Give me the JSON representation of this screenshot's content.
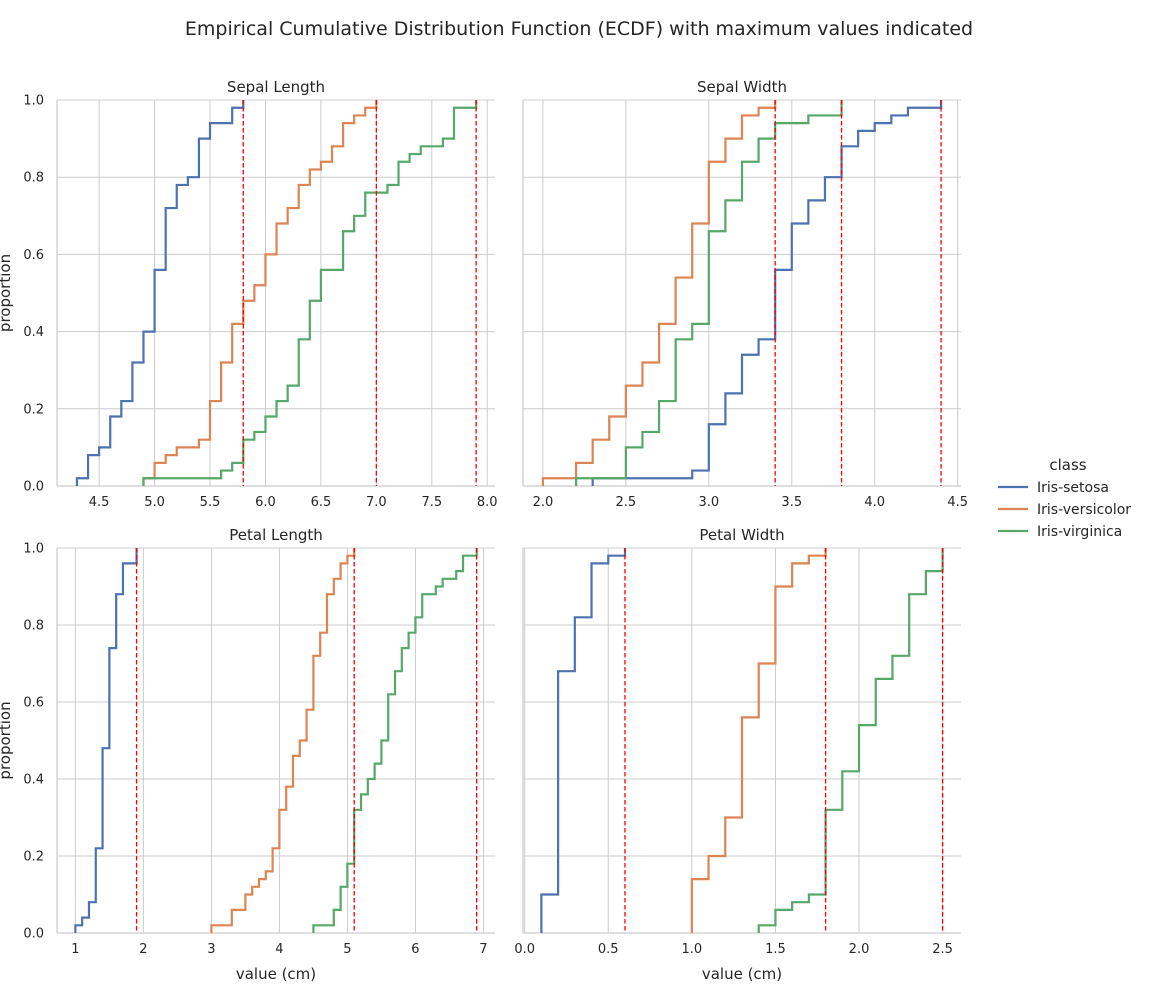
{
  "chart_data": {
    "type": "line",
    "title": "Empirical Cumulative Distribution Function (ECDF) with maximum values indicated",
    "legend": {
      "title": "class",
      "placement": "right",
      "entries": [
        {
          "name": "Iris-setosa",
          "color": "#4c72b0"
        },
        {
          "name": "Iris-versicolor",
          "color": "#dd8452"
        },
        {
          "name": "Iris-virginica",
          "color": "#55a868"
        }
      ]
    },
    "ylabel": "proportion",
    "xlabel": "value (cm)",
    "panels": [
      {
        "title": "Sepal Length",
        "xlim": [
          4.12,
          8.07
        ],
        "xticks": [
          4.5,
          5.0,
          5.5,
          6.0,
          6.5,
          7.0,
          7.5,
          8.0
        ],
        "xticklabels": [
          "4.5",
          "5.0",
          "5.5",
          "6.0",
          "6.5",
          "7.0",
          "7.5",
          "8.0"
        ],
        "ylim": [
          0,
          1
        ],
        "yticks": [
          0.0,
          0.2,
          0.4,
          0.6,
          0.8,
          1.0
        ],
        "yticklabels": [
          "0.0",
          "0.2",
          "0.4",
          "0.6",
          "0.8",
          "1.0"
        ],
        "xlabel": "",
        "ylabel": "proportion",
        "series": [
          {
            "name": "Iris-setosa",
            "x": [
              4.3,
              4.4,
              4.5,
              4.6,
              4.7,
              4.8,
              4.9,
              5.0,
              5.1,
              5.2,
              5.3,
              5.4,
              5.5,
              5.7,
              5.8
            ],
            "y": [
              0.02,
              0.08,
              0.1,
              0.18,
              0.22,
              0.32,
              0.4,
              0.56,
              0.72,
              0.78,
              0.8,
              0.9,
              0.94,
              0.98,
              1.0
            ]
          },
          {
            "name": "Iris-versicolor",
            "x": [
              4.9,
              5.0,
              5.1,
              5.2,
              5.4,
              5.5,
              5.6,
              5.7,
              5.8,
              5.9,
              6.0,
              6.1,
              6.2,
              6.3,
              6.4,
              6.5,
              6.6,
              6.7,
              6.8,
              6.9,
              7.0
            ],
            "y": [
              0.02,
              0.06,
              0.08,
              0.1,
              0.12,
              0.22,
              0.32,
              0.42,
              0.48,
              0.52,
              0.6,
              0.68,
              0.72,
              0.78,
              0.82,
              0.84,
              0.88,
              0.94,
              0.96,
              0.98,
              1.0
            ]
          },
          {
            "name": "Iris-virginica",
            "x": [
              4.9,
              5.6,
              5.7,
              5.8,
              5.9,
              6.0,
              6.1,
              6.2,
              6.3,
              6.4,
              6.5,
              6.7,
              6.8,
              6.9,
              7.1,
              7.2,
              7.3,
              7.4,
              7.6,
              7.7,
              7.9
            ],
            "y": [
              0.02,
              0.04,
              0.06,
              0.12,
              0.14,
              0.18,
              0.22,
              0.26,
              0.38,
              0.48,
              0.56,
              0.66,
              0.7,
              0.76,
              0.78,
              0.84,
              0.86,
              0.88,
              0.9,
              0.98,
              1.0
            ]
          }
        ],
        "max_lines": [
          5.8,
          7.0,
          7.9
        ]
      },
      {
        "title": "Sepal Width",
        "xlim": [
          1.88,
          4.52
        ],
        "xticks": [
          2.0,
          2.5,
          3.0,
          3.5,
          4.0,
          4.5
        ],
        "xticklabels": [
          "2.0",
          "2.5",
          "3.0",
          "3.5",
          "4.0",
          "4.5"
        ],
        "ylim": [
          0,
          1
        ],
        "yticks": [],
        "yticklabels": [],
        "xlabel": "",
        "ylabel": "",
        "series": [
          {
            "name": "Iris-setosa",
            "x": [
              2.3,
              2.9,
              3.0,
              3.1,
              3.2,
              3.3,
              3.4,
              3.5,
              3.6,
              3.7,
              3.8,
              3.9,
              4.0,
              4.1,
              4.2,
              4.4
            ],
            "y": [
              0.02,
              0.04,
              0.16,
              0.24,
              0.34,
              0.38,
              0.56,
              0.68,
              0.74,
              0.8,
              0.88,
              0.92,
              0.94,
              0.96,
              0.98,
              1.0
            ]
          },
          {
            "name": "Iris-versicolor",
            "x": [
              2.0,
              2.2,
              2.3,
              2.4,
              2.5,
              2.6,
              2.7,
              2.8,
              2.9,
              3.0,
              3.1,
              3.2,
              3.3,
              3.4
            ],
            "y": [
              0.02,
              0.06,
              0.12,
              0.18,
              0.26,
              0.32,
              0.42,
              0.54,
              0.68,
              0.84,
              0.9,
              0.96,
              0.98,
              1.0
            ]
          },
          {
            "name": "Iris-virginica",
            "x": [
              2.2,
              2.5,
              2.6,
              2.7,
              2.8,
              2.9,
              3.0,
              3.1,
              3.2,
              3.3,
              3.4,
              3.6,
              3.8
            ],
            "y": [
              0.02,
              0.1,
              0.14,
              0.22,
              0.38,
              0.42,
              0.66,
              0.74,
              0.84,
              0.9,
              0.94,
              0.96,
              1.0
            ]
          }
        ],
        "max_lines": [
          3.4,
          3.8,
          4.4
        ]
      },
      {
        "title": "Petal Length",
        "xlim": [
          0.73,
          7.17
        ],
        "xticks": [
          1,
          2,
          3,
          4,
          5,
          6,
          7
        ],
        "xticklabels": [
          "1",
          "2",
          "3",
          "4",
          "5",
          "6",
          "7"
        ],
        "ylim": [
          0,
          1
        ],
        "yticks": [
          0.0,
          0.2,
          0.4,
          0.6,
          0.8,
          1.0
        ],
        "yticklabels": [
          "0.0",
          "0.2",
          "0.4",
          "0.6",
          "0.8",
          "1.0"
        ],
        "xlabel": "value (cm)",
        "ylabel": "proportion",
        "series": [
          {
            "name": "Iris-setosa",
            "x": [
              1.0,
              1.1,
              1.2,
              1.3,
              1.4,
              1.5,
              1.6,
              1.7,
              1.9
            ],
            "y": [
              0.02,
              0.04,
              0.08,
              0.22,
              0.48,
              0.74,
              0.88,
              0.96,
              1.0
            ]
          },
          {
            "name": "Iris-versicolor",
            "x": [
              3.0,
              3.3,
              3.5,
              3.6,
              3.7,
              3.8,
              3.9,
              4.0,
              4.1,
              4.2,
              4.3,
              4.4,
              4.5,
              4.6,
              4.7,
              4.8,
              4.9,
              5.0,
              5.1
            ],
            "y": [
              0.02,
              0.06,
              0.1,
              0.12,
              0.14,
              0.16,
              0.22,
              0.32,
              0.38,
              0.46,
              0.5,
              0.58,
              0.72,
              0.78,
              0.88,
              0.92,
              0.96,
              0.98,
              1.0
            ]
          },
          {
            "name": "Iris-virginica",
            "x": [
              4.5,
              4.8,
              4.9,
              5.0,
              5.1,
              5.2,
              5.3,
              5.4,
              5.5,
              5.6,
              5.7,
              5.8,
              5.9,
              6.0,
              6.1,
              6.3,
              6.4,
              6.6,
              6.7,
              6.9
            ],
            "y": [
              0.02,
              0.06,
              0.12,
              0.18,
              0.32,
              0.36,
              0.4,
              0.44,
              0.5,
              0.62,
              0.68,
              0.74,
              0.78,
              0.82,
              0.88,
              0.9,
              0.92,
              0.94,
              0.98,
              1.0
            ]
          }
        ],
        "max_lines": [
          1.9,
          5.1,
          6.9
        ]
      },
      {
        "title": "Petal Width",
        "xlim": [
          -0.01,
          2.61
        ],
        "xticks": [
          0.0,
          0.5,
          1.0,
          1.5,
          2.0,
          2.5
        ],
        "xticklabels": [
          "0.0",
          "0.5",
          "1.0",
          "1.5",
          "2.0",
          "2.5"
        ],
        "ylim": [
          0,
          1
        ],
        "yticks": [],
        "yticklabels": [],
        "xlabel": "value (cm)",
        "ylabel": "",
        "series": [
          {
            "name": "Iris-setosa",
            "x": [
              0.1,
              0.2,
              0.3,
              0.4,
              0.5,
              0.6
            ],
            "y": [
              0.1,
              0.68,
              0.82,
              0.96,
              0.98,
              1.0
            ]
          },
          {
            "name": "Iris-versicolor",
            "x": [
              1.0,
              1.1,
              1.2,
              1.3,
              1.4,
              1.5,
              1.6,
              1.7,
              1.8
            ],
            "y": [
              0.14,
              0.2,
              0.3,
              0.56,
              0.7,
              0.9,
              0.96,
              0.98,
              1.0
            ]
          },
          {
            "name": "Iris-virginica",
            "x": [
              1.4,
              1.5,
              1.6,
              1.7,
              1.8,
              1.9,
              2.0,
              2.1,
              2.2,
              2.3,
              2.4,
              2.5
            ],
            "y": [
              0.02,
              0.06,
              0.08,
              0.1,
              0.32,
              0.42,
              0.54,
              0.66,
              0.72,
              0.88,
              0.94,
              1.0
            ]
          }
        ],
        "max_lines": [
          0.6,
          1.8,
          2.5
        ]
      }
    ]
  }
}
